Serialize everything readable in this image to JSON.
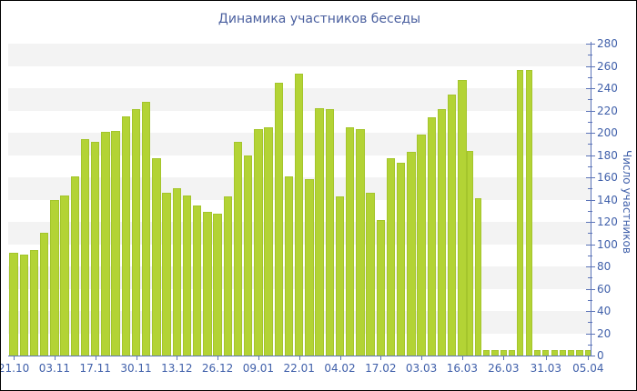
{
  "chart_data": {
    "type": "bar",
    "title": "Динамика участников беседы",
    "xlabel": "",
    "ylabel": "Число участников",
    "ylim": [
      0,
      280
    ],
    "y_tick_step": 20,
    "y_minor_tick_step": 10,
    "legend": "none",
    "grid": "alternating horizontal gray bands every 20 units",
    "x_tick_labels": [
      "21.10",
      "03.11",
      "17.11",
      "30.11",
      "13.12",
      "26.12",
      "09.01",
      "22.01",
      "04.02",
      "17.02",
      "03.03",
      "16.03",
      "26.03",
      "31.03",
      "05.04"
    ],
    "x_tick_bar_numbers": [
      1,
      5,
      9,
      13,
      17,
      21,
      25,
      29,
      33,
      37,
      41,
      45,
      50,
      55,
      60
    ],
    "values": [
      92,
      91,
      95,
      110,
      140,
      144,
      161,
      194,
      192,
      201,
      202,
      215,
      221,
      228,
      177,
      146,
      150,
      144,
      135,
      129,
      127,
      143,
      192,
      180,
      203,
      205,
      245,
      161,
      253,
      158,
      222,
      221,
      143,
      205,
      203,
      146,
      122,
      177,
      173,
      183,
      198,
      214,
      221,
      234,
      247,
      184,
      141,
      5,
      5,
      5,
      5,
      256,
      256,
      5,
      5,
      5,
      5,
      5,
      5,
      5
    ]
  },
  "colors": {
    "bar": "#b3d335",
    "bar_border": "#a4c52c",
    "axis": "#5c74b8",
    "tick": "#5c74b8",
    "label_text": "#4060aa",
    "title_text": "#4a5f9f",
    "band": "#f3f3f3",
    "background": "#ffffff",
    "frame": "#000000"
  }
}
